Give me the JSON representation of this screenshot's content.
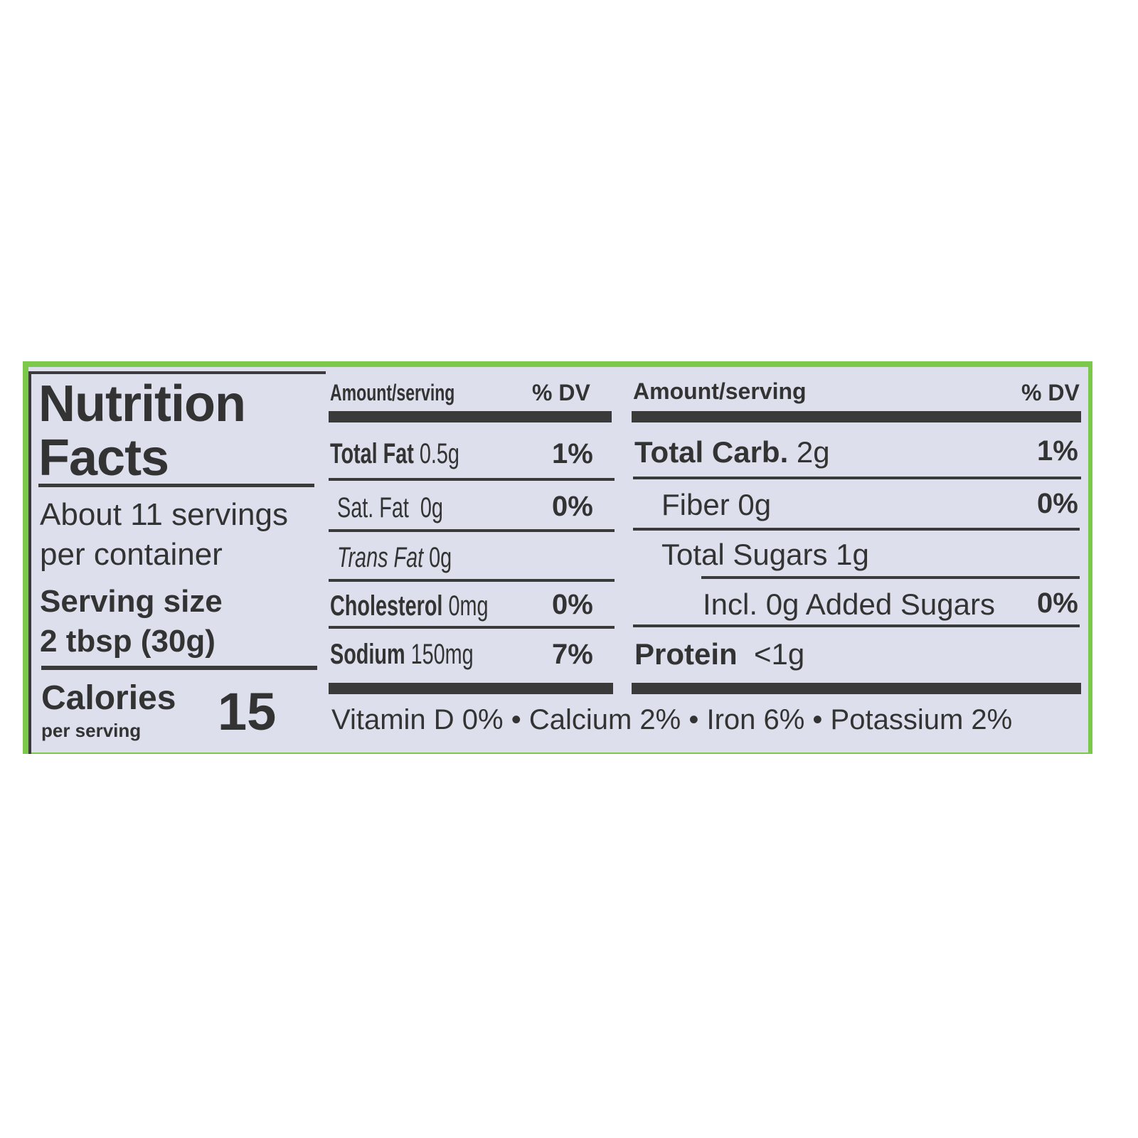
{
  "colors": {
    "border": "#7cc84a",
    "label": "#dde0ec",
    "text": "#333333"
  },
  "title": [
    "Nutrition",
    "Facts"
  ],
  "servings": [
    "About 11 servings",
    "per container"
  ],
  "serving_size": {
    "label": "Serving size",
    "value": "2 tbsp (30g)"
  },
  "calories": {
    "label": "Calories",
    "sub": "per serving",
    "value": "15"
  },
  "col1": {
    "header": "Amount/serving",
    "dv": "% DV",
    "rows": [
      {
        "name": "Total Fat",
        "amount": "0.5g",
        "dv": "1%"
      },
      {
        "name": "Sat. Fat",
        "amount": "0g",
        "dv": "0%"
      },
      {
        "name": "Trans Fat",
        "amount": "0g",
        "dv": ""
      },
      {
        "name": "Cholesterol",
        "amount": "0mg",
        "dv": "0%"
      },
      {
        "name": "Sodium",
        "amount": "150mg",
        "dv": "7%"
      }
    ]
  },
  "col2": {
    "header": "Amount/serving",
    "dv": "% DV",
    "rows": [
      {
        "name": "Total Carb.",
        "amount": "2g",
        "dv": "1%"
      },
      {
        "name": "Fiber",
        "amount": "0g",
        "dv": "0%"
      },
      {
        "name": "Total Sugars",
        "amount": "1g",
        "dv": ""
      },
      {
        "name": "Incl. 0g Added Sugars",
        "amount": "",
        "dv": "0%"
      },
      {
        "name": "Protein",
        "amount": "<1g",
        "dv": ""
      }
    ]
  },
  "vitamins": {
    "vitd": "Vitamin D 0%",
    "rest": " • Calcium 2% • Iron 6% • Potassium 2%"
  }
}
